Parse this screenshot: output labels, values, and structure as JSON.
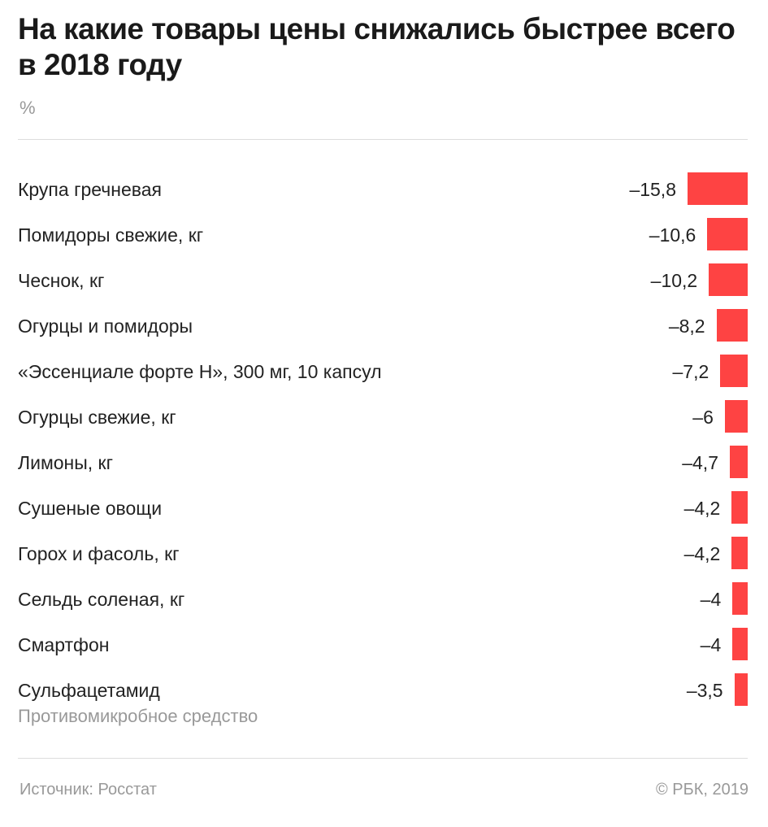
{
  "title": "На какие товары цены снижались быстрее всего в 2018 году",
  "unit": "%",
  "source": "Источник: Росстат",
  "copyright": "© РБК, 2019",
  "chart_data": {
    "type": "bar",
    "orientation": "horizontal",
    "title": "На какие товары цены снижались быстрее всего в 2018 году",
    "ylabel": "%",
    "bar_color": "#fe4343",
    "categories": [
      "Крупа гречневая",
      "Помидоры свежие, кг",
      "Чеснок, кг",
      "Огурцы и помидоры",
      "«Эссенциале форте Н», 300 мг, 10 капсул",
      "Огурцы свежие, кг",
      "Лимоны, кг",
      "Сушеные овощи",
      "Горох и фасоль, кг",
      "Сельдь соленая, кг",
      "Смартфон",
      "Сульфацетамид"
    ],
    "subtitles": {
      "11": "Противомикробное средство"
    },
    "values": [
      -15.8,
      -10.6,
      -10.2,
      -8.2,
      -7.2,
      -6,
      -4.7,
      -4.2,
      -4.2,
      -4,
      -4,
      -3.5
    ],
    "value_labels": [
      "–15,8",
      "–10,6",
      "–10,2",
      "–8,2",
      "–7,2",
      "–6",
      "–4,7",
      "–4,2",
      "–4,2",
      "–4",
      "–4",
      "–3,5"
    ]
  }
}
